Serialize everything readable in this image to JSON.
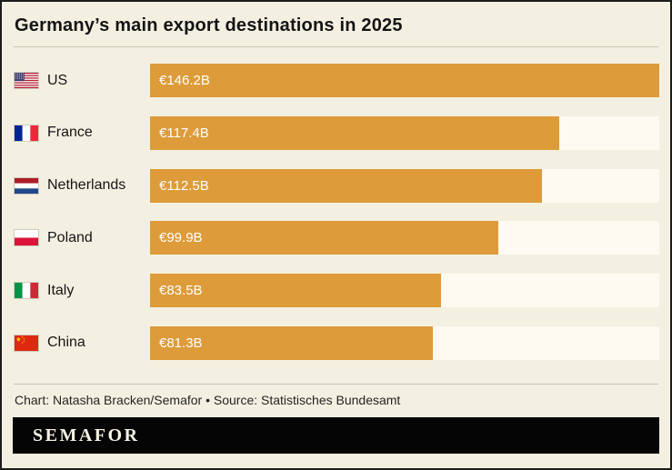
{
  "title": "Germany’s main export destinations in 2025",
  "chart_data": {
    "type": "bar",
    "orientation": "horizontal",
    "title": "Germany’s main export destinations in 2025",
    "categories": [
      "US",
      "France",
      "Netherlands",
      "Poland",
      "Italy",
      "China"
    ],
    "values": [
      146.2,
      117.4,
      112.5,
      99.9,
      83.5,
      81.3
    ],
    "value_labels": [
      "€146.2B",
      "€117.4B",
      "€112.5B",
      "€99.9B",
      "€83.5B",
      "€81.3B"
    ],
    "flags": [
      "us",
      "france",
      "netherlands",
      "poland",
      "italy",
      "china"
    ],
    "unit": "billions of euros",
    "xlim": [
      0,
      146.2
    ],
    "grid": false,
    "legend_position": "none",
    "bar_color": "#dd9b3a",
    "track_color": "#fcfaf1"
  },
  "footer": {
    "credit": "Chart: Natasha Bracken/Semafor • Source: Statistisches Bundesamt",
    "brand": "SEMAFOR"
  },
  "colors": {
    "background": "#f4f0e1",
    "border": "#1c1c1c",
    "bar": "#dd9b3a",
    "track": "#fcfaf1",
    "brand_bar_bg": "#050505",
    "brand_text": "#f7f3e3"
  }
}
